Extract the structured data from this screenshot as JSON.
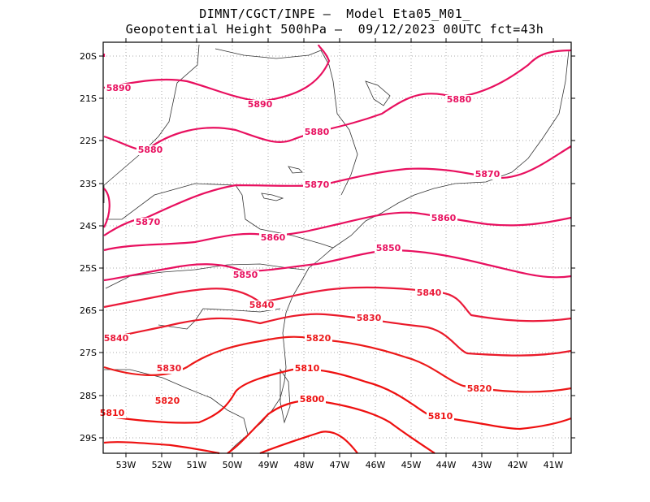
{
  "title_line1": "DIMNT/CGCT/INPE –  Model Eta05_M01_",
  "title_line2": "Geopotential Height 500hPa –  09/12/2023 00UTC fct=43h",
  "map": {
    "lat_ticks": [
      "20S",
      "21S",
      "22S",
      "23S",
      "24S",
      "25S",
      "26S",
      "27S",
      "28S",
      "29S"
    ],
    "lon_ticks": [
      "53W",
      "52W",
      "51W",
      "50W",
      "49W",
      "48W",
      "47W",
      "46W",
      "45W",
      "44W",
      "43W",
      "42W",
      "41W"
    ]
  },
  "contours": [
    {
      "value": 5890,
      "label": "5890",
      "color": "#e8105f"
    },
    {
      "value": 5880,
      "label": "5880",
      "color": "#e8105f"
    },
    {
      "value": 5870,
      "label": "5870",
      "color": "#e8105f"
    },
    {
      "value": 5860,
      "label": "5860",
      "color": "#e8105f"
    },
    {
      "value": 5850,
      "label": "5850",
      "color": "#e8105f"
    },
    {
      "value": 5840,
      "label": "5840",
      "color": "#ea1a3a"
    },
    {
      "value": 5830,
      "label": "5830",
      "color": "#ea1a2a"
    },
    {
      "value": 5820,
      "label": "5820",
      "color": "#ec1a1a"
    },
    {
      "value": 5810,
      "label": "5810",
      "color": "#ee1010"
    },
    {
      "value": 5800,
      "label": "5800",
      "color": "#ee1010"
    }
  ]
}
